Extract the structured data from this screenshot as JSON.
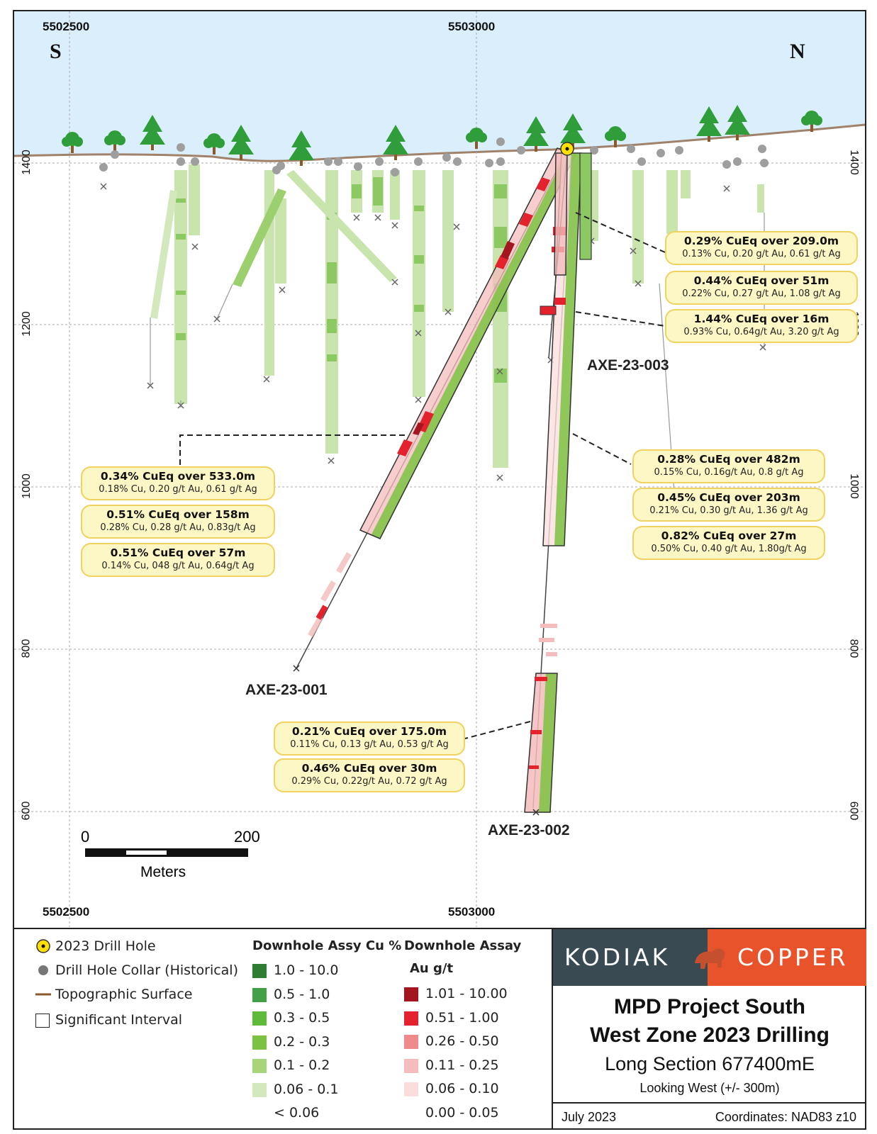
{
  "map": {
    "north_label": "N",
    "south_label": "S",
    "top_coords": [
      "5502500",
      "5503000"
    ],
    "bottom_coords": [
      "5502500",
      "5503000"
    ],
    "elevations_left": [
      "1400",
      "1200",
      "1000",
      "800",
      "600"
    ],
    "elevations_right": [
      "1400",
      "1200",
      "1000",
      "800",
      "600"
    ]
  },
  "holes": {
    "h001": "AXE-23-001",
    "h002": "AXE-23-002",
    "h003": "AXE-23-003"
  },
  "callouts": {
    "c1": {
      "head": "0.29% CuEq over 209.0m",
      "sub": "0.13% Cu, 0.20 g/t Au, 0.61 g/t Ag"
    },
    "c2": {
      "head": "0.44% CuEq over 51m",
      "sub": "0.22% Cu, 0.27 g/t Au, 1.08 g/t Ag"
    },
    "c3": {
      "head": "1.44% CuEq over 16m",
      "sub": "0.93% Cu, 0.64g/t Au, 3.20 g/t Ag"
    },
    "c4": {
      "head": "0.34% CuEq over 533.0m",
      "sub": "0.18% Cu, 0.20 g/t Au, 0.61 g/t Ag"
    },
    "c5": {
      "head": "0.51% CuEq over 158m",
      "sub": "0.28% Cu, 0.28 g/t Au, 0.83g/t Ag"
    },
    "c6": {
      "head": "0.51% CuEq over 57m",
      "sub": "0.14% Cu, 048 g/t Au, 0.64g/t Ag"
    },
    "c7": {
      "head": "0.28% CuEq over 482m",
      "sub": "0.15% Cu, 0.16g/t Au, 0.8 g/t Ag"
    },
    "c8": {
      "head": "0.45% CuEq over 203m",
      "sub": "0.21% Cu, 0.30 g/t Au, 1.36 g/t Ag"
    },
    "c9": {
      "head": "0.82% CuEq over 27m",
      "sub": "0.50% Cu, 0.40 g/t Au, 1.80g/t Ag"
    },
    "c10": {
      "head": "0.21% CuEq over 175.0m",
      "sub": "0.11% Cu, 0.13 g/t Au, 0.53 g/t Ag"
    },
    "c11": {
      "head": "0.46% CuEq over 30m",
      "sub": "0.29% Cu, 0.22g/t Au, 0.72 g/t Ag"
    }
  },
  "scale": {
    "start": "0",
    "end": "200",
    "unit": "Meters"
  },
  "legend": {
    "drill_2023": "2023 Drill Hole",
    "collar_hist": "Drill Hole Collar (Historical)",
    "topo": "Topographic Surface",
    "sig_int": "Significant Interval",
    "cu_head": "Downhole Assy Cu %",
    "au_head1": "Downhole Assay",
    "au_head2": "Au g/t",
    "cu_classes": [
      {
        "label": "1.0 - 10.0",
        "color": "#2e7d32"
      },
      {
        "label": "0.5 - 1.0",
        "color": "#43a047"
      },
      {
        "label": "0.3 - 0.5",
        "color": "#5dba3b"
      },
      {
        "label": "0.2 - 0.3",
        "color": "#7cc242"
      },
      {
        "label": "0.1 - 0.2",
        "color": "#a8d47a"
      },
      {
        "label": "0.06 - 0.1",
        "color": "#d3e9bd"
      },
      {
        "label": "< 0.06",
        "color": "#ffffff"
      }
    ],
    "au_classes": [
      {
        "label": "1.01 - 10.00",
        "color": "#a31620"
      },
      {
        "label": "0.51 - 1.00",
        "color": "#e3222d"
      },
      {
        "label": "0.26 - 0.50",
        "color": "#ef8a8a"
      },
      {
        "label": "0.11 - 0.25",
        "color": "#f4bcbc"
      },
      {
        "label": "0.06 - 0.10",
        "color": "#fadede"
      },
      {
        "label": "0.00 - 0.05",
        "color": "#ffffff"
      }
    ]
  },
  "title_block": {
    "logo_left": "KODIAK",
    "logo_right": "COPPER",
    "title_line1": "MPD Project South",
    "title_line2": "West Zone 2023 Drilling",
    "subtitle": "Long Section 677400mE",
    "view": "Looking West (+/- 300m)",
    "date": "July 2023",
    "coords": "Coordinates: NAD83 z10"
  },
  "colors": {
    "sky": "#dbeefb",
    "topo": "#a0826a",
    "frame": "#222222"
  }
}
